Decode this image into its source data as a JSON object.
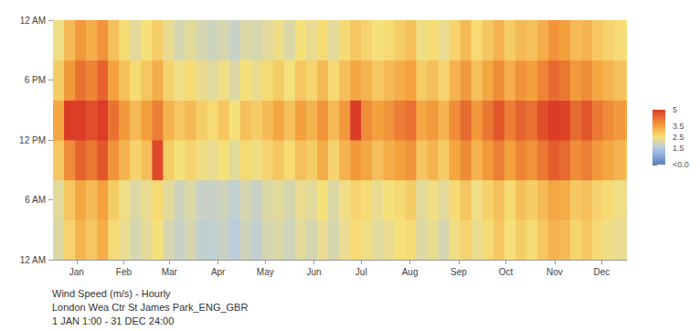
{
  "chart_data": {
    "type": "heatmap",
    "title": "Wind Speed (m/s) - Hourly",
    "subtitle": "London Wea Ctr St James Park_ENG_GBR",
    "annotations": [
      "1 JAN 1:00 - 31 DEC 24:00"
    ],
    "xlim": [
      0,
      365
    ],
    "xticks": [
      {
        "value": 15,
        "label": "Jan"
      },
      {
        "value": 45,
        "label": "Feb"
      },
      {
        "value": 74,
        "label": "Mar"
      },
      {
        "value": 105,
        "label": "Apr"
      },
      {
        "value": 135,
        "label": "May"
      },
      {
        "value": 166,
        "label": "Jun"
      },
      {
        "value": 196,
        "label": "Jul"
      },
      {
        "value": 227,
        "label": "Aug"
      },
      {
        "value": 258,
        "label": "Sep"
      },
      {
        "value": 288,
        "label": "Oct"
      },
      {
        "value": 319,
        "label": "Nov"
      },
      {
        "value": 349,
        "label": "Dec"
      }
    ],
    "ylim": [
      0,
      24
    ],
    "yticks": [
      {
        "value": 0,
        "label": "12 AM"
      },
      {
        "value": 6,
        "label": "6 AM"
      },
      {
        "value": 12,
        "label": "12 PM"
      },
      {
        "value": 18,
        "label": "6 PM"
      },
      {
        "value": 24,
        "label": "12 AM"
      }
    ],
    "grid": false,
    "x_bins": [
      0,
      7,
      14,
      21,
      28,
      35,
      42,
      49,
      56,
      63,
      70,
      77,
      84,
      91,
      98,
      105,
      112,
      119,
      126,
      133,
      140,
      147,
      154,
      161,
      168,
      175,
      182,
      189,
      196,
      203,
      210,
      217,
      224,
      231,
      238,
      245,
      252,
      259,
      266,
      273,
      280,
      287,
      294,
      301,
      308,
      315,
      322,
      329,
      336,
      343,
      350,
      357,
      364,
      365
    ],
    "y_bins": [
      0,
      4,
      8,
      12,
      16,
      20,
      24
    ],
    "cells": [
      [
        2.1,
        2.7,
        3.2,
        2.9,
        3.3,
        2.6,
        2.3,
        2.0,
        2.2,
        2.5,
        2.0,
        1.8,
        2.0,
        1.7,
        1.7,
        1.8,
        1.6,
        1.9,
        1.7,
        2.0,
        2.1,
        1.9,
        2.2,
        2.0,
        2.3,
        2.0,
        2.3,
        2.6,
        2.4,
        2.2,
        2.3,
        2.5,
        2.6,
        2.1,
        2.3,
        2.0,
        2.4,
        2.7,
        2.3,
        2.6,
        2.9,
        2.5,
        2.8,
        2.6,
        2.9,
        3.2,
        3.1,
        2.7,
        2.9,
        2.6,
        2.4,
        2.3,
        2.2
      ],
      [
        2.2,
        2.9,
        3.4,
        3.1,
        3.5,
        2.8,
        2.4,
        2.1,
        2.3,
        2.6,
        2.2,
        1.9,
        2.1,
        1.8,
        1.8,
        1.9,
        1.7,
        2.0,
        1.8,
        2.1,
        2.2,
        2.0,
        2.3,
        2.2,
        2.5,
        2.1,
        2.4,
        2.7,
        2.6,
        2.3,
        2.5,
        2.6,
        2.8,
        2.2,
        2.4,
        2.2,
        2.6,
        2.9,
        2.4,
        2.7,
        3.0,
        2.6,
        3.0,
        2.8,
        3.1,
        3.4,
        3.3,
        2.9,
        3.0,
        2.7,
        2.6,
        2.4,
        2.3
      ],
      [
        2.9,
        3.8,
        4.4,
        4.1,
        4.6,
        3.7,
        3.2,
        2.7,
        3.0,
        4.8,
        2.8,
        2.5,
        2.7,
        2.4,
        2.3,
        2.5,
        2.2,
        2.6,
        2.4,
        2.7,
        2.9,
        2.6,
        3.0,
        2.8,
        3.3,
        2.7,
        3.2,
        3.6,
        3.4,
        3.0,
        3.3,
        3.5,
        3.7,
        2.9,
        3.2,
        2.8,
        3.4,
        3.8,
        3.2,
        3.6,
        4.0,
        3.5,
        3.9,
        3.7,
        4.1,
        4.5,
        4.3,
        3.8,
        4.0,
        3.6,
        3.4,
        3.2,
        3.0
      ],
      [
        3.4,
        5.8,
        5.0,
        4.7,
        5.3,
        4.2,
        3.6,
        3.1,
        3.5,
        4.0,
        3.2,
        2.9,
        3.1,
        2.8,
        2.6,
        2.9,
        2.5,
        3.0,
        2.8,
        3.1,
        3.4,
        3.0,
        3.5,
        3.2,
        3.7,
        3.1,
        3.6,
        5.6,
        3.8,
        3.5,
        3.7,
        4.0,
        4.2,
        3.4,
        3.6,
        3.2,
        3.8,
        4.3,
        3.6,
        4.1,
        4.6,
        4.0,
        4.4,
        4.2,
        4.7,
        5.2,
        4.9,
        4.3,
        4.6,
        4.1,
        3.8,
        3.6,
        3.5
      ],
      [
        2.8,
        3.6,
        4.2,
        3.9,
        4.4,
        3.5,
        3.0,
        2.6,
        2.9,
        3.3,
        2.7,
        2.4,
        2.6,
        2.3,
        2.2,
        2.4,
        2.1,
        2.5,
        2.3,
        2.6,
        2.8,
        2.5,
        2.9,
        2.7,
        3.1,
        2.6,
        3.0,
        3.4,
        3.2,
        2.9,
        3.1,
        3.3,
        3.5,
        2.8,
        3.0,
        2.7,
        3.2,
        3.6,
        3.0,
        3.4,
        3.8,
        3.3,
        3.7,
        3.5,
        3.9,
        4.3,
        4.1,
        3.6,
        3.8,
        3.4,
        3.2,
        3.0,
        2.9
      ],
      [
        2.4,
        3.1,
        3.6,
        3.3,
        3.7,
        3.0,
        2.6,
        2.2,
        2.5,
        2.8,
        2.3,
        2.0,
        2.2,
        2.0,
        1.9,
        2.0,
        1.8,
        2.1,
        2.0,
        2.2,
        2.4,
        2.1,
        2.5,
        2.3,
        2.6,
        2.2,
        2.6,
        2.9,
        2.7,
        2.5,
        2.6,
        2.8,
        3.0,
        2.4,
        2.6,
        2.3,
        2.7,
        3.1,
        2.6,
        2.9,
        3.2,
        2.8,
        3.1,
        3.0,
        3.3,
        3.7,
        3.5,
        3.1,
        3.2,
        2.9,
        2.7,
        2.6,
        2.5
      ]
    ],
    "colorbar": {
      "range": [
        0,
        5
      ],
      "ticks": [
        {
          "value": 0,
          "label": "<0.0"
        },
        1.5,
        2.5,
        3.5,
        5
      ],
      "colors": [
        "#5b7fc0",
        "#b3cbe6",
        "#f6e07a",
        "#f4a03c",
        "#dc3b26"
      ]
    }
  }
}
